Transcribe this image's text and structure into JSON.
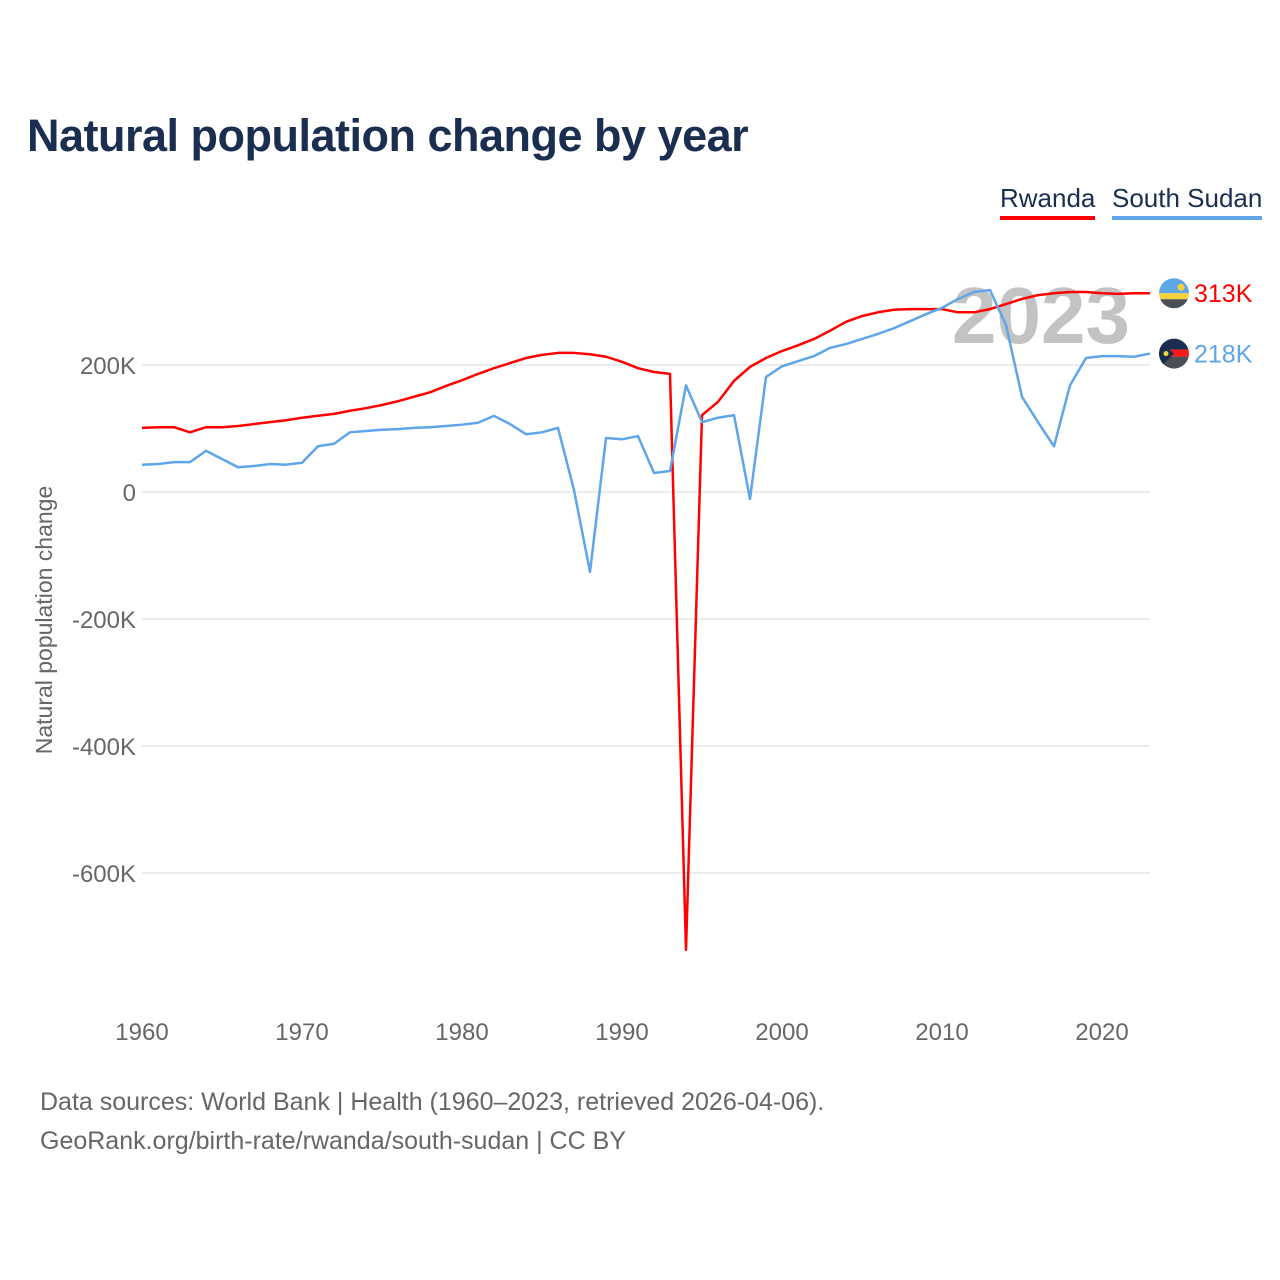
{
  "title": "Natural population change by year",
  "legend": [
    "Rwanda",
    "South Sudan"
  ],
  "footer": {
    "line1": "Data sources: World Bank | Health (1960–2023, retrieved 2026-04-06).",
    "line2": "GeoRank.org/birth-rate/rwanda/south-sudan | CC BY"
  },
  "colors": {
    "Rwanda": "#ff0000",
    "South Sudan": "#5ea5ea"
  },
  "chart_data": {
    "type": "line",
    "title": "Natural population change by year",
    "xlabel": "",
    "ylabel": "Natural population change",
    "xlim": [
      1960,
      2023
    ],
    "ylim": [
      -780,
      350
    ],
    "x_ticks": [
      1960,
      1970,
      1980,
      1990,
      2000,
      2010,
      2020
    ],
    "y_ticks": [
      {
        "v": 200,
        "label": "200K"
      },
      {
        "v": 0,
        "label": "0"
      },
      {
        "v": -200,
        "label": "-200K"
      },
      {
        "v": -400,
        "label": "-400K"
      },
      {
        "v": -600,
        "label": "-600K"
      }
    ],
    "year_watermark": "2023",
    "grid": true,
    "legend_position": "top-right",
    "x_start": 1960,
    "series": [
      {
        "name": "Rwanda",
        "end_label": "313K",
        "flag": "rwanda-flag",
        "values": [
          101,
          102,
          102,
          94,
          102,
          102,
          104,
          107,
          110,
          113,
          117,
          120,
          123,
          128,
          132,
          137,
          143,
          150,
          157,
          167,
          176,
          186,
          195,
          203,
          211,
          216,
          219,
          219,
          217,
          213,
          205,
          195,
          189,
          186,
          -721,
          121,
          142,
          175,
          197,
          211,
          222,
          231,
          241,
          254,
          268,
          277,
          283,
          287,
          288,
          288,
          288,
          283,
          283,
          288,
          296,
          304,
          310,
          313,
          315,
          315,
          313,
          312,
          313,
          313
        ]
      },
      {
        "name": "South Sudan",
        "end_label": "218K",
        "flag": "south-sudan-flag",
        "values": [
          43,
          44,
          47,
          47,
          65,
          52,
          39,
          41,
          44,
          43,
          46,
          72,
          76,
          94,
          96,
          98,
          99,
          101,
          102,
          104,
          106,
          109,
          120,
          107,
          91,
          94,
          101,
          3,
          -126,
          85,
          83,
          88,
          30,
          33,
          168,
          110,
          117,
          121,
          -11,
          181,
          198,
          206,
          214,
          227,
          233,
          241,
          249,
          258,
          269,
          280,
          290,
          304,
          315,
          318,
          263,
          150,
          110,
          72,
          168,
          211,
          214,
          214,
          213,
          218
        ]
      }
    ]
  }
}
